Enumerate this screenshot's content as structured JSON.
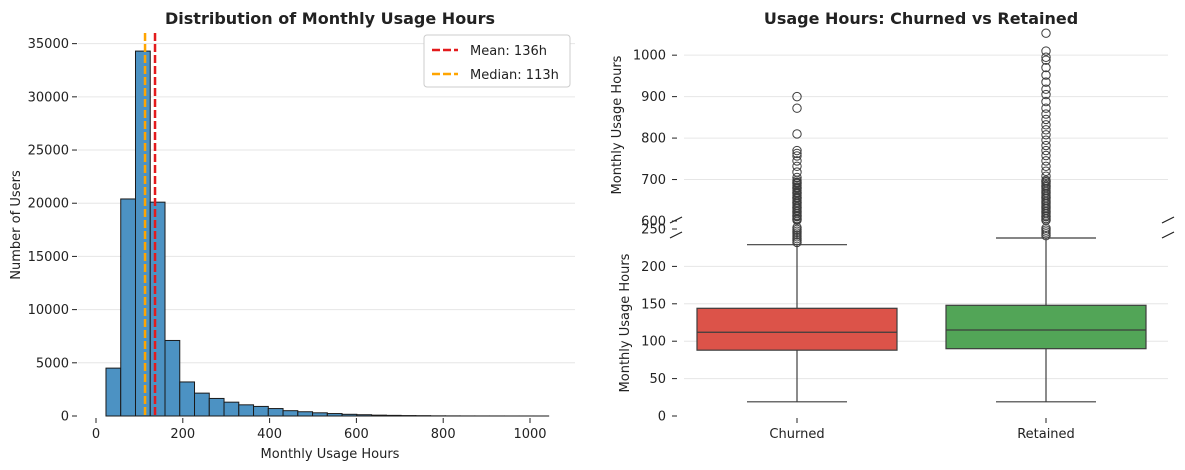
{
  "chart_data": [
    {
      "type": "histogram",
      "title": "Distribution of Monthly Usage Hours",
      "xlabel": "Monthly Usage Hours",
      "ylabel": "Number of Users",
      "xlim": [
        0,
        1050
      ],
      "ylim": [
        0,
        36000
      ],
      "xticks": [
        0,
        200,
        400,
        600,
        800,
        1000
      ],
      "yticks": [
        0,
        5000,
        10000,
        15000,
        20000,
        25000,
        30000,
        35000
      ],
      "grid": "horizontal",
      "bin_width": 34,
      "bins": [
        {
          "start": 23,
          "count": 4500
        },
        {
          "start": 57,
          "count": 20400
        },
        {
          "start": 91,
          "count": 34300
        },
        {
          "start": 125,
          "count": 20100
        },
        {
          "start": 159,
          "count": 7100
        },
        {
          "start": 193,
          "count": 3200
        },
        {
          "start": 227,
          "count": 2150
        },
        {
          "start": 261,
          "count": 1650
        },
        {
          "start": 295,
          "count": 1300
        },
        {
          "start": 329,
          "count": 1050
        },
        {
          "start": 363,
          "count": 900
        },
        {
          "start": 397,
          "count": 700
        },
        {
          "start": 431,
          "count": 500
        },
        {
          "start": 465,
          "count": 400
        },
        {
          "start": 499,
          "count": 300
        },
        {
          "start": 533,
          "count": 230
        },
        {
          "start": 567,
          "count": 160
        },
        {
          "start": 601,
          "count": 120
        },
        {
          "start": 635,
          "count": 80
        },
        {
          "start": 669,
          "count": 60
        },
        {
          "start": 703,
          "count": 40
        },
        {
          "start": 737,
          "count": 30
        },
        {
          "start": 771,
          "count": 15
        },
        {
          "start": 805,
          "count": 10
        },
        {
          "start": 839,
          "count": 6
        },
        {
          "start": 873,
          "count": 4
        },
        {
          "start": 907,
          "count": 3
        },
        {
          "start": 941,
          "count": 2
        },
        {
          "start": 975,
          "count": 2
        },
        {
          "start": 1009,
          "count": 1
        }
      ],
      "bar_color": "#4c92c3",
      "reference_lines": [
        {
          "label": "Mean: 136h",
          "x": 136,
          "color": "#e31a1c"
        },
        {
          "label": "Median: 113h",
          "x": 113,
          "color": "#ffa500"
        }
      ],
      "legend_position": "top-right"
    },
    {
      "type": "boxplot",
      "title": "Usage Hours: Churned vs Retained",
      "ylabel": "Monthly Usage Hours",
      "categories": [
        "Churned",
        "Retained"
      ],
      "broken_axis": true,
      "upper_panel": {
        "ylim": [
          600,
          1080
        ],
        "yticks": [
          600,
          700,
          800,
          900,
          1000
        ]
      },
      "lower_panel": {
        "ylim": [
          0,
          250
        ],
        "yticks": [
          0,
          50,
          100,
          150,
          200,
          250
        ]
      },
      "grid": "horizontal",
      "series": [
        {
          "name": "Churned",
          "color": "#dc5349",
          "whisker_low": 19,
          "q1": 88,
          "median": 112,
          "q3": 144,
          "whisker_high": 229,
          "outliers": [
            900,
            872,
            810,
            770,
            763,
            757,
            745,
            732,
            718,
            705,
            692,
            680,
            668,
            656,
            645,
            633,
            622,
            612,
            604
          ]
        },
        {
          "name": "Retained",
          "color": "#52a557",
          "whisker_low": 19,
          "q1": 90,
          "median": 115,
          "q3": 148,
          "whisker_high": 238,
          "outliers": [
            1053,
            1010,
            995,
            988,
            970,
            952,
            935,
            918,
            905,
            888,
            872,
            858,
            845,
            832,
            820,
            808,
            795,
            782,
            770,
            758,
            745,
            732,
            720,
            708,
            695,
            683,
            670,
            658,
            646,
            634,
            622,
            611,
            602
          ]
        }
      ]
    }
  ]
}
